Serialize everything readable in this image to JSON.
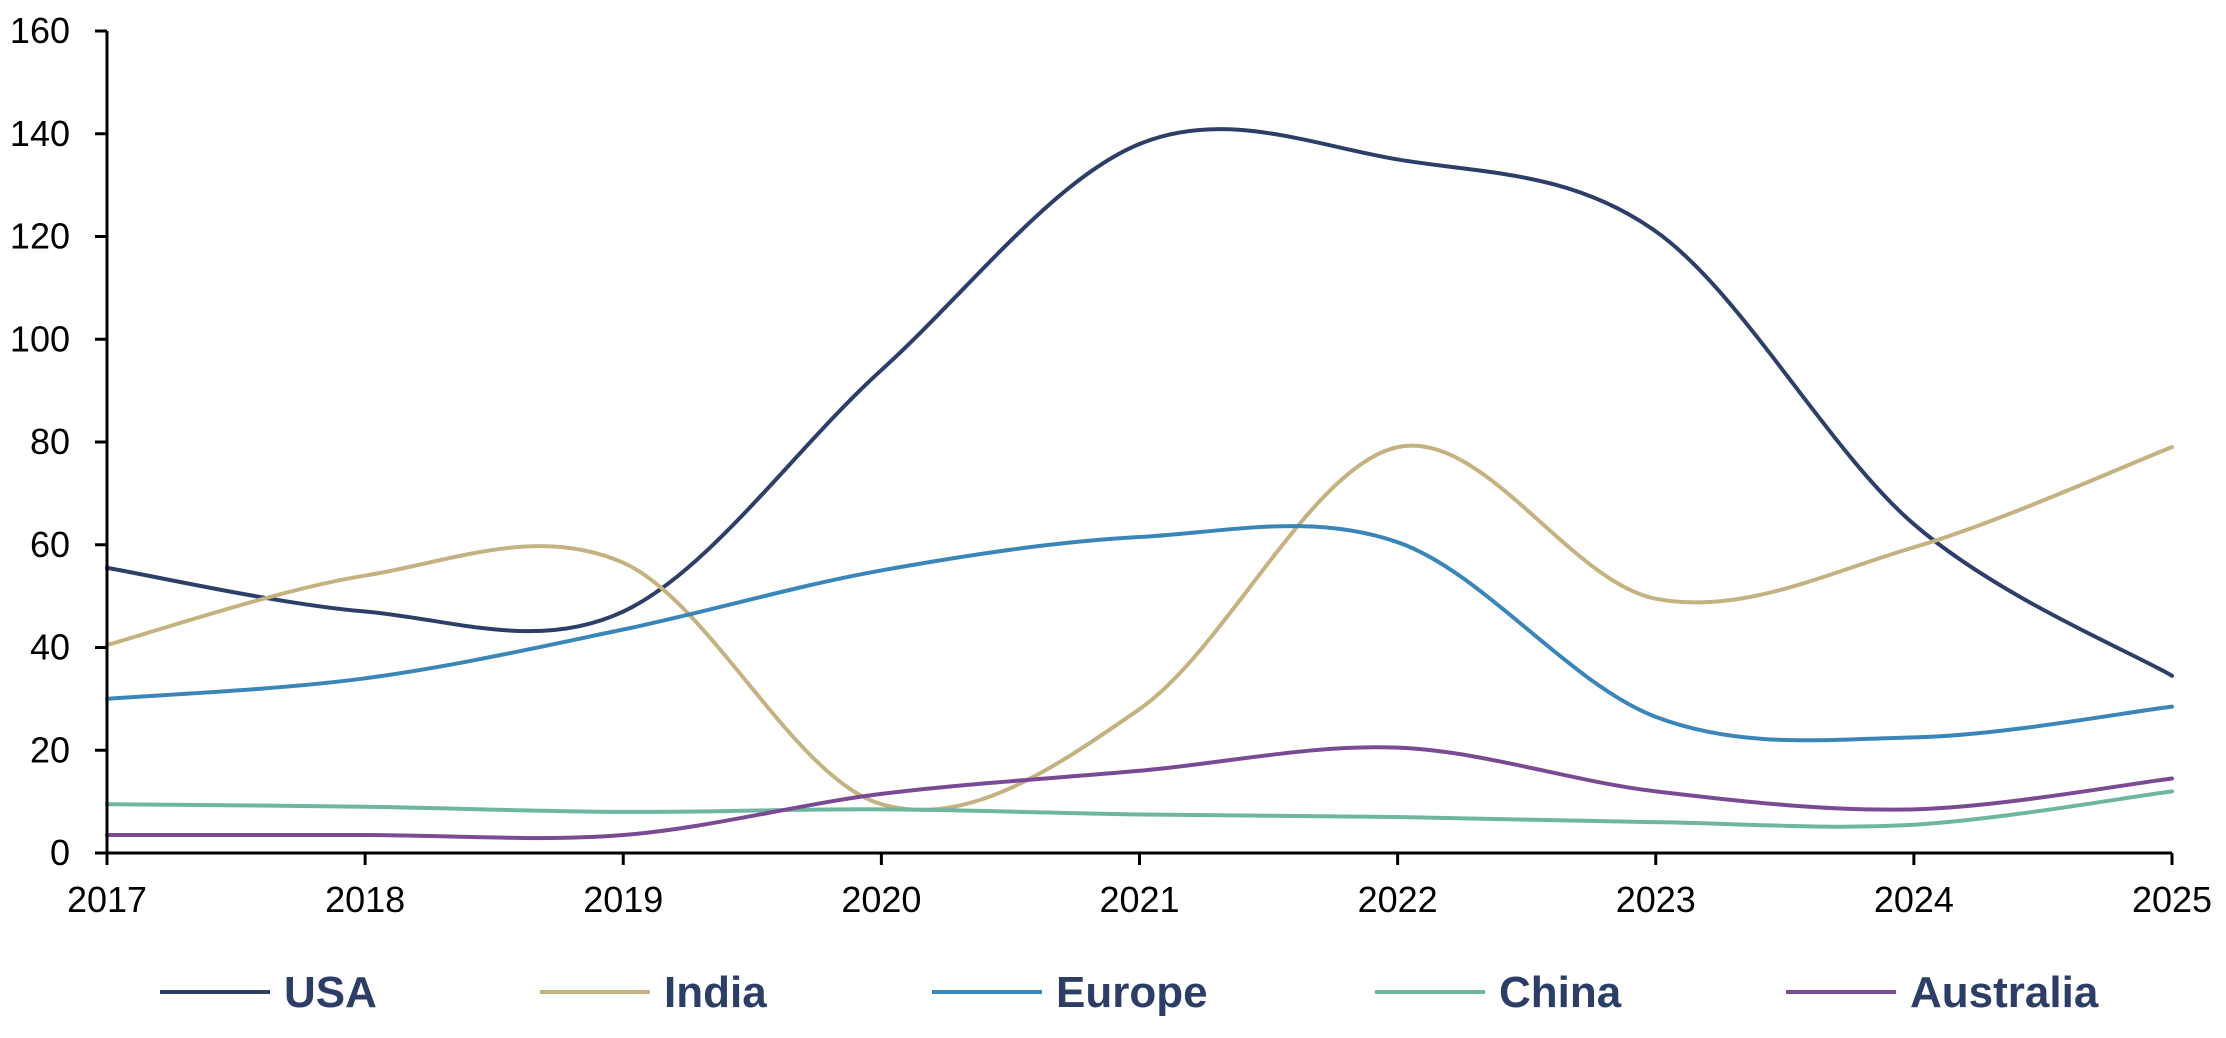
{
  "chart_data": {
    "type": "line",
    "x": [
      "2017",
      "2018",
      "2019",
      "2020",
      "2021",
      "2022",
      "2023",
      "2024",
      "2025"
    ],
    "ylim": [
      0,
      160
    ],
    "yticks": [
      0,
      20,
      40,
      60,
      80,
      100,
      120,
      140,
      160
    ],
    "grid": false,
    "legend_position": "bottom",
    "smooth": true,
    "series": [
      {
        "name": "USA",
        "color": "#2d3f68",
        "values": [
          55.5,
          47,
          47,
          94,
          138,
          135,
          121,
          64,
          34.5
        ]
      },
      {
        "name": "India",
        "color": "#c4b281",
        "values": [
          40.5,
          54,
          56.5,
          9.5,
          28,
          79,
          49.5,
          59.5,
          79
        ]
      },
      {
        "name": "Europe",
        "color": "#3a86b9",
        "values": [
          30,
          34,
          43.5,
          55,
          61.5,
          60.5,
          26.5,
          22.5,
          28.5
        ]
      },
      {
        "name": "China",
        "color": "#6fb6a0",
        "values": [
          9.5,
          9,
          8,
          8.5,
          7.5,
          7,
          6,
          5.5,
          12
        ]
      },
      {
        "name": "Australia",
        "color": "#7a4b94",
        "values": [
          3.5,
          3.5,
          3.5,
          11.5,
          16,
          20.5,
          12,
          8.5,
          14.5
        ]
      }
    ]
  }
}
